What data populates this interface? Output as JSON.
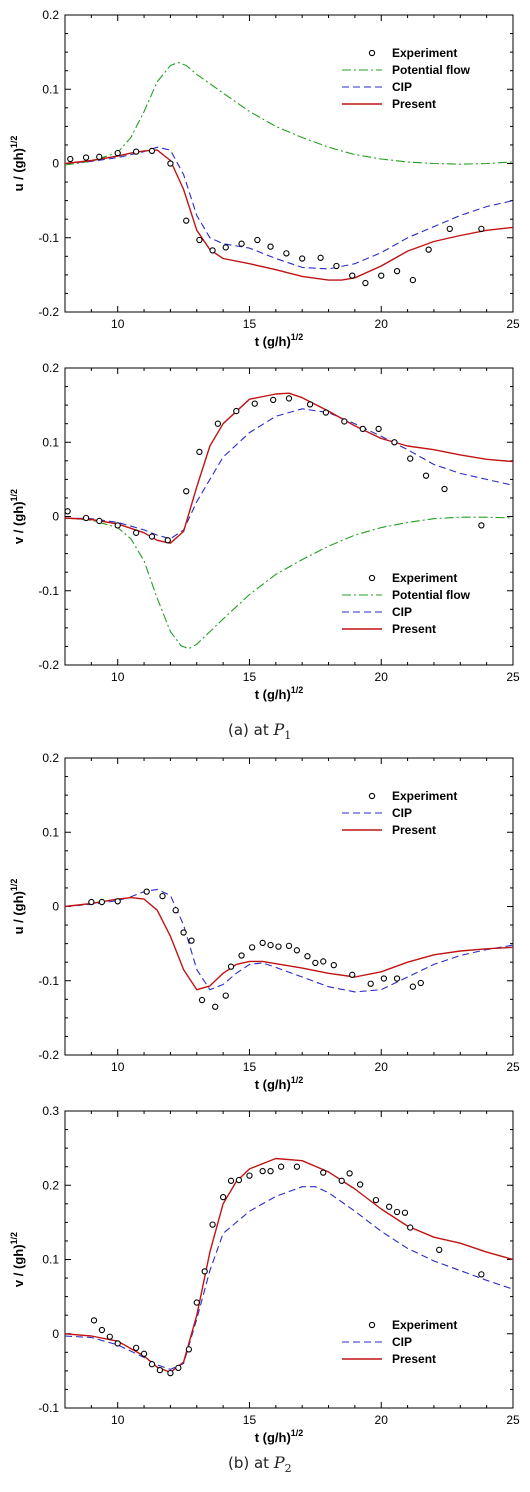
{
  "captions": [
    {
      "prefix": "(a)  at  ",
      "symbol": "P",
      "subscript": "1"
    },
    {
      "prefix": "(b)  at  ",
      "symbol": "P",
      "subscript": "2"
    }
  ],
  "chart_data": [
    {
      "type": "line",
      "panel": "P1-u",
      "xlabel": "t (g/h)",
      "xlabel_sup": "1/2",
      "ylabel": "u / (gh)",
      "ylabel_sup": "1/2",
      "xlim": [
        8,
        25
      ],
      "ylim": [
        -0.2,
        0.2
      ],
      "xticks": [
        10,
        15,
        20,
        25
      ],
      "yticks": [
        -0.2,
        -0.1,
        0,
        0.1,
        0.2
      ],
      "legend_position": "top-right",
      "series": [
        {
          "name": "Experiment",
          "style": "markers",
          "color": "#000000",
          "x": [
            8.2,
            8.8,
            9.3,
            10.0,
            10.7,
            11.3,
            12.0,
            12.6,
            13.1,
            13.6,
            14.1,
            14.7,
            15.3,
            15.8,
            16.4,
            17.0,
            17.7,
            18.3,
            18.9,
            19.4,
            20.0,
            20.6,
            21.2,
            21.8,
            22.6,
            23.8
          ],
          "y": [
            0.006,
            0.008,
            0.009,
            0.014,
            0.016,
            0.017,
            0.0,
            -0.077,
            -0.103,
            -0.117,
            -0.113,
            -0.108,
            -0.103,
            -0.112,
            -0.121,
            -0.128,
            -0.127,
            -0.138,
            -0.151,
            -0.161,
            -0.151,
            -0.145,
            -0.157,
            -0.116,
            -0.088,
            -0.088
          ]
        },
        {
          "name": "Potential flow",
          "style": "dashdot",
          "color": "#22a022",
          "x": [
            8,
            9,
            10,
            10.5,
            11,
            11.5,
            12,
            12.3,
            12.6,
            13,
            14,
            15,
            16,
            17,
            18,
            19,
            20,
            21,
            22,
            23,
            24,
            25
          ],
          "y": [
            -0.002,
            0.003,
            0.015,
            0.035,
            0.07,
            0.11,
            0.132,
            0.136,
            0.132,
            0.12,
            0.095,
            0.07,
            0.05,
            0.035,
            0.022,
            0.012,
            0.006,
            0.002,
            0.0,
            -0.001,
            0.0,
            0.002
          ]
        },
        {
          "name": "CIP",
          "style": "dashed",
          "color": "#2b2bcc",
          "x": [
            8,
            9,
            10,
            11,
            11.5,
            12,
            12.5,
            13,
            13.5,
            14,
            15,
            16,
            17,
            18,
            19,
            20,
            21,
            22,
            23,
            24,
            25
          ],
          "y": [
            0.0,
            0.003,
            0.008,
            0.016,
            0.022,
            0.018,
            -0.015,
            -0.07,
            -0.1,
            -0.108,
            -0.114,
            -0.128,
            -0.14,
            -0.142,
            -0.135,
            -0.12,
            -0.1,
            -0.085,
            -0.07,
            -0.058,
            -0.05
          ]
        },
        {
          "name": "Present",
          "style": "solid",
          "color": "#c01414",
          "x": [
            8,
            9,
            10,
            10.5,
            11,
            11.5,
            12,
            12.5,
            13,
            13.5,
            14,
            15,
            16,
            17,
            18,
            18.5,
            19,
            20,
            21,
            22,
            23,
            24,
            25
          ],
          "y": [
            0.0,
            0.004,
            0.01,
            0.014,
            0.017,
            0.018,
            0.004,
            -0.035,
            -0.09,
            -0.116,
            -0.128,
            -0.135,
            -0.143,
            -0.152,
            -0.157,
            -0.157,
            -0.154,
            -0.138,
            -0.118,
            -0.105,
            -0.097,
            -0.09,
            -0.086
          ]
        }
      ]
    },
    {
      "type": "line",
      "panel": "P1-v",
      "xlabel": "t (g/h)",
      "xlabel_sup": "1/2",
      "ylabel": "v / (gh)",
      "ylabel_sup": "1/2",
      "xlim": [
        8,
        25
      ],
      "ylim": [
        -0.2,
        0.2
      ],
      "xticks": [
        10,
        15,
        20,
        25
      ],
      "yticks": [
        -0.2,
        -0.1,
        0,
        0.1,
        0.2
      ],
      "legend_position": "bottom-right",
      "series": [
        {
          "name": "Experiment",
          "style": "markers",
          "color": "#000000",
          "x": [
            8.1,
            8.8,
            9.3,
            10.0,
            10.7,
            11.3,
            11.9,
            12.6,
            13.1,
            13.8,
            14.5,
            15.2,
            15.9,
            16.5,
            17.3,
            17.9,
            18.6,
            19.3,
            19.9,
            20.5,
            21.1,
            21.7,
            22.4,
            23.8
          ],
          "y": [
            0.007,
            -0.002,
            -0.006,
            -0.012,
            -0.022,
            -0.027,
            -0.032,
            0.034,
            0.087,
            0.125,
            0.142,
            0.152,
            0.157,
            0.159,
            0.151,
            0.14,
            0.128,
            0.118,
            0.118,
            0.1,
            0.078,
            0.055,
            0.037,
            -0.012
          ]
        },
        {
          "name": "Potential flow",
          "style": "dashdot",
          "color": "#22a022",
          "x": [
            8,
            9,
            10,
            10.5,
            11,
            11.5,
            12,
            12.4,
            12.7,
            13,
            13.5,
            14,
            15,
            16,
            17,
            18,
            19,
            20,
            21,
            22,
            23,
            24,
            25
          ],
          "y": [
            -0.002,
            -0.005,
            -0.015,
            -0.03,
            -0.06,
            -0.11,
            -0.155,
            -0.174,
            -0.178,
            -0.172,
            -0.155,
            -0.138,
            -0.105,
            -0.078,
            -0.058,
            -0.04,
            -0.025,
            -0.015,
            -0.008,
            -0.003,
            -0.001,
            -0.001,
            -0.002
          ]
        },
        {
          "name": "CIP",
          "style": "dashed",
          "color": "#2b2bcc",
          "x": [
            8,
            9,
            10,
            11,
            11.5,
            12,
            12.5,
            13,
            13.5,
            14,
            15,
            16,
            17,
            18,
            19,
            20,
            21,
            22,
            23,
            24,
            25
          ],
          "y": [
            -0.002,
            -0.003,
            -0.008,
            -0.018,
            -0.025,
            -0.03,
            -0.018,
            0.02,
            0.05,
            0.08,
            0.113,
            0.135,
            0.145,
            0.14,
            0.125,
            0.108,
            0.09,
            0.07,
            0.058,
            0.05,
            0.042
          ]
        },
        {
          "name": "Present",
          "style": "solid",
          "color": "#c01414",
          "x": [
            8,
            9,
            10,
            11,
            11.5,
            12,
            12.5,
            13,
            13.5,
            14,
            15,
            16,
            16.5,
            17,
            18,
            19,
            20,
            21,
            22,
            23,
            24,
            25
          ],
          "y": [
            -0.002,
            -0.004,
            -0.01,
            -0.022,
            -0.032,
            -0.036,
            -0.02,
            0.04,
            0.095,
            0.125,
            0.158,
            0.165,
            0.166,
            0.16,
            0.142,
            0.122,
            0.105,
            0.095,
            0.09,
            0.083,
            0.077,
            0.074
          ]
        }
      ]
    },
    {
      "type": "line",
      "panel": "P2-u",
      "xlabel": "t (g/h)",
      "xlabel_sup": "1/2",
      "ylabel": "u / (gh)",
      "ylabel_sup": "1/2",
      "xlim": [
        8,
        25
      ],
      "ylim": [
        -0.2,
        0.2
      ],
      "xticks": [
        10,
        15,
        20,
        25
      ],
      "yticks": [
        -0.2,
        -0.1,
        0,
        0.1,
        0.2
      ],
      "legend_position": "top-right",
      "series": [
        {
          "name": "Experiment",
          "style": "markers",
          "color": "#000000",
          "x": [
            9.0,
            9.4,
            10.0,
            11.1,
            11.7,
            12.2,
            12.5,
            12.8,
            13.2,
            13.7,
            14.1,
            14.3,
            14.7,
            15.1,
            15.5,
            15.8,
            16.1,
            16.5,
            16.8,
            17.2,
            17.5,
            17.8,
            18.2,
            18.9,
            19.6,
            20.1,
            20.6,
            21.2,
            21.5
          ],
          "y": [
            0.006,
            0.006,
            0.007,
            0.02,
            0.014,
            -0.005,
            -0.035,
            -0.046,
            -0.126,
            -0.135,
            -0.12,
            -0.081,
            -0.066,
            -0.055,
            -0.049,
            -0.052,
            -0.054,
            -0.053,
            -0.059,
            -0.067,
            -0.076,
            -0.074,
            -0.079,
            -0.092,
            -0.104,
            -0.097,
            -0.097,
            -0.108,
            -0.103
          ]
        },
        {
          "name": "CIP",
          "style": "dashed",
          "color": "#2b2bcc",
          "x": [
            8,
            9,
            10,
            10.5,
            11,
            11.5,
            12,
            12.5,
            13,
            13.5,
            14,
            14.5,
            15,
            15.5,
            16,
            17,
            18,
            19,
            20,
            21,
            22,
            23,
            24,
            25
          ],
          "y": [
            0.0,
            0.003,
            0.008,
            0.013,
            0.02,
            0.023,
            0.015,
            -0.025,
            -0.085,
            -0.112,
            -0.105,
            -0.09,
            -0.078,
            -0.076,
            -0.082,
            -0.095,
            -0.108,
            -0.115,
            -0.112,
            -0.095,
            -0.078,
            -0.066,
            -0.058,
            -0.052
          ]
        },
        {
          "name": "Present",
          "style": "solid",
          "color": "#c01414",
          "x": [
            8,
            9,
            10,
            10.5,
            11,
            11.5,
            12,
            12.5,
            13,
            13.5,
            14,
            14.5,
            15,
            15.5,
            16,
            17,
            18,
            19,
            20,
            21,
            22,
            23,
            24,
            25
          ],
          "y": [
            0.0,
            0.004,
            0.01,
            0.012,
            0.01,
            -0.005,
            -0.04,
            -0.085,
            -0.112,
            -0.107,
            -0.09,
            -0.078,
            -0.074,
            -0.074,
            -0.077,
            -0.083,
            -0.09,
            -0.095,
            -0.088,
            -0.075,
            -0.065,
            -0.06,
            -0.057,
            -0.055
          ]
        }
      ]
    },
    {
      "type": "line",
      "panel": "P2-v",
      "xlabel": "t (g/h)",
      "xlabel_sup": "1/2",
      "ylabel": "v / (gh)",
      "ylabel_sup": "1/2",
      "xlim": [
        8,
        25
      ],
      "ylim": [
        -0.1,
        0.3
      ],
      "xticks": [
        10,
        15,
        20,
        25
      ],
      "yticks": [
        -0.1,
        0,
        0.1,
        0.2,
        0.3
      ],
      "legend_position": "bottom-right",
      "series": [
        {
          "name": "Experiment",
          "style": "markers",
          "color": "#000000",
          "x": [
            9.1,
            9.4,
            9.7,
            10.0,
            10.7,
            11.0,
            11.3,
            11.6,
            12.0,
            12.3,
            12.7,
            13.0,
            13.3,
            13.6,
            14.0,
            14.3,
            14.6,
            15.0,
            15.5,
            15.8,
            16.2,
            16.8,
            17.8,
            18.5,
            18.8,
            19.2,
            19.8,
            20.3,
            20.6,
            20.9,
            21.1,
            22.2,
            23.8
          ],
          "y": [
            0.018,
            0.005,
            -0.004,
            -0.013,
            -0.019,
            -0.027,
            -0.041,
            -0.049,
            -0.053,
            -0.046,
            -0.021,
            0.042,
            0.084,
            0.147,
            0.184,
            0.206,
            0.207,
            0.213,
            0.219,
            0.219,
            0.225,
            0.225,
            0.217,
            0.206,
            0.216,
            0.201,
            0.18,
            0.171,
            0.164,
            0.163,
            0.143,
            0.113,
            0.08
          ]
        },
        {
          "name": "CIP",
          "style": "dashed",
          "color": "#2b2bcc",
          "x": [
            8,
            9,
            10,
            11,
            11.5,
            12,
            12.5,
            13,
            13.5,
            14,
            15,
            16,
            17,
            17.5,
            18,
            19,
            20,
            21,
            22,
            23,
            24,
            25
          ],
          "y": [
            -0.003,
            -0.005,
            -0.015,
            -0.032,
            -0.042,
            -0.048,
            -0.04,
            0.02,
            0.085,
            0.135,
            0.165,
            0.185,
            0.198,
            0.198,
            0.19,
            0.165,
            0.138,
            0.115,
            0.098,
            0.085,
            0.072,
            0.06
          ]
        },
        {
          "name": "Present",
          "style": "solid",
          "color": "#c01414",
          "x": [
            8,
            9,
            10,
            11,
            11.5,
            12,
            12.5,
            13,
            13.5,
            14,
            14.5,
            15,
            16,
            17,
            18,
            19,
            20,
            21,
            22,
            23,
            24,
            25
          ],
          "y": [
            0.0,
            -0.003,
            -0.01,
            -0.03,
            -0.045,
            -0.052,
            -0.038,
            0.025,
            0.11,
            0.175,
            0.205,
            0.222,
            0.236,
            0.233,
            0.218,
            0.195,
            0.168,
            0.145,
            0.13,
            0.122,
            0.11,
            0.1
          ]
        }
      ]
    }
  ]
}
